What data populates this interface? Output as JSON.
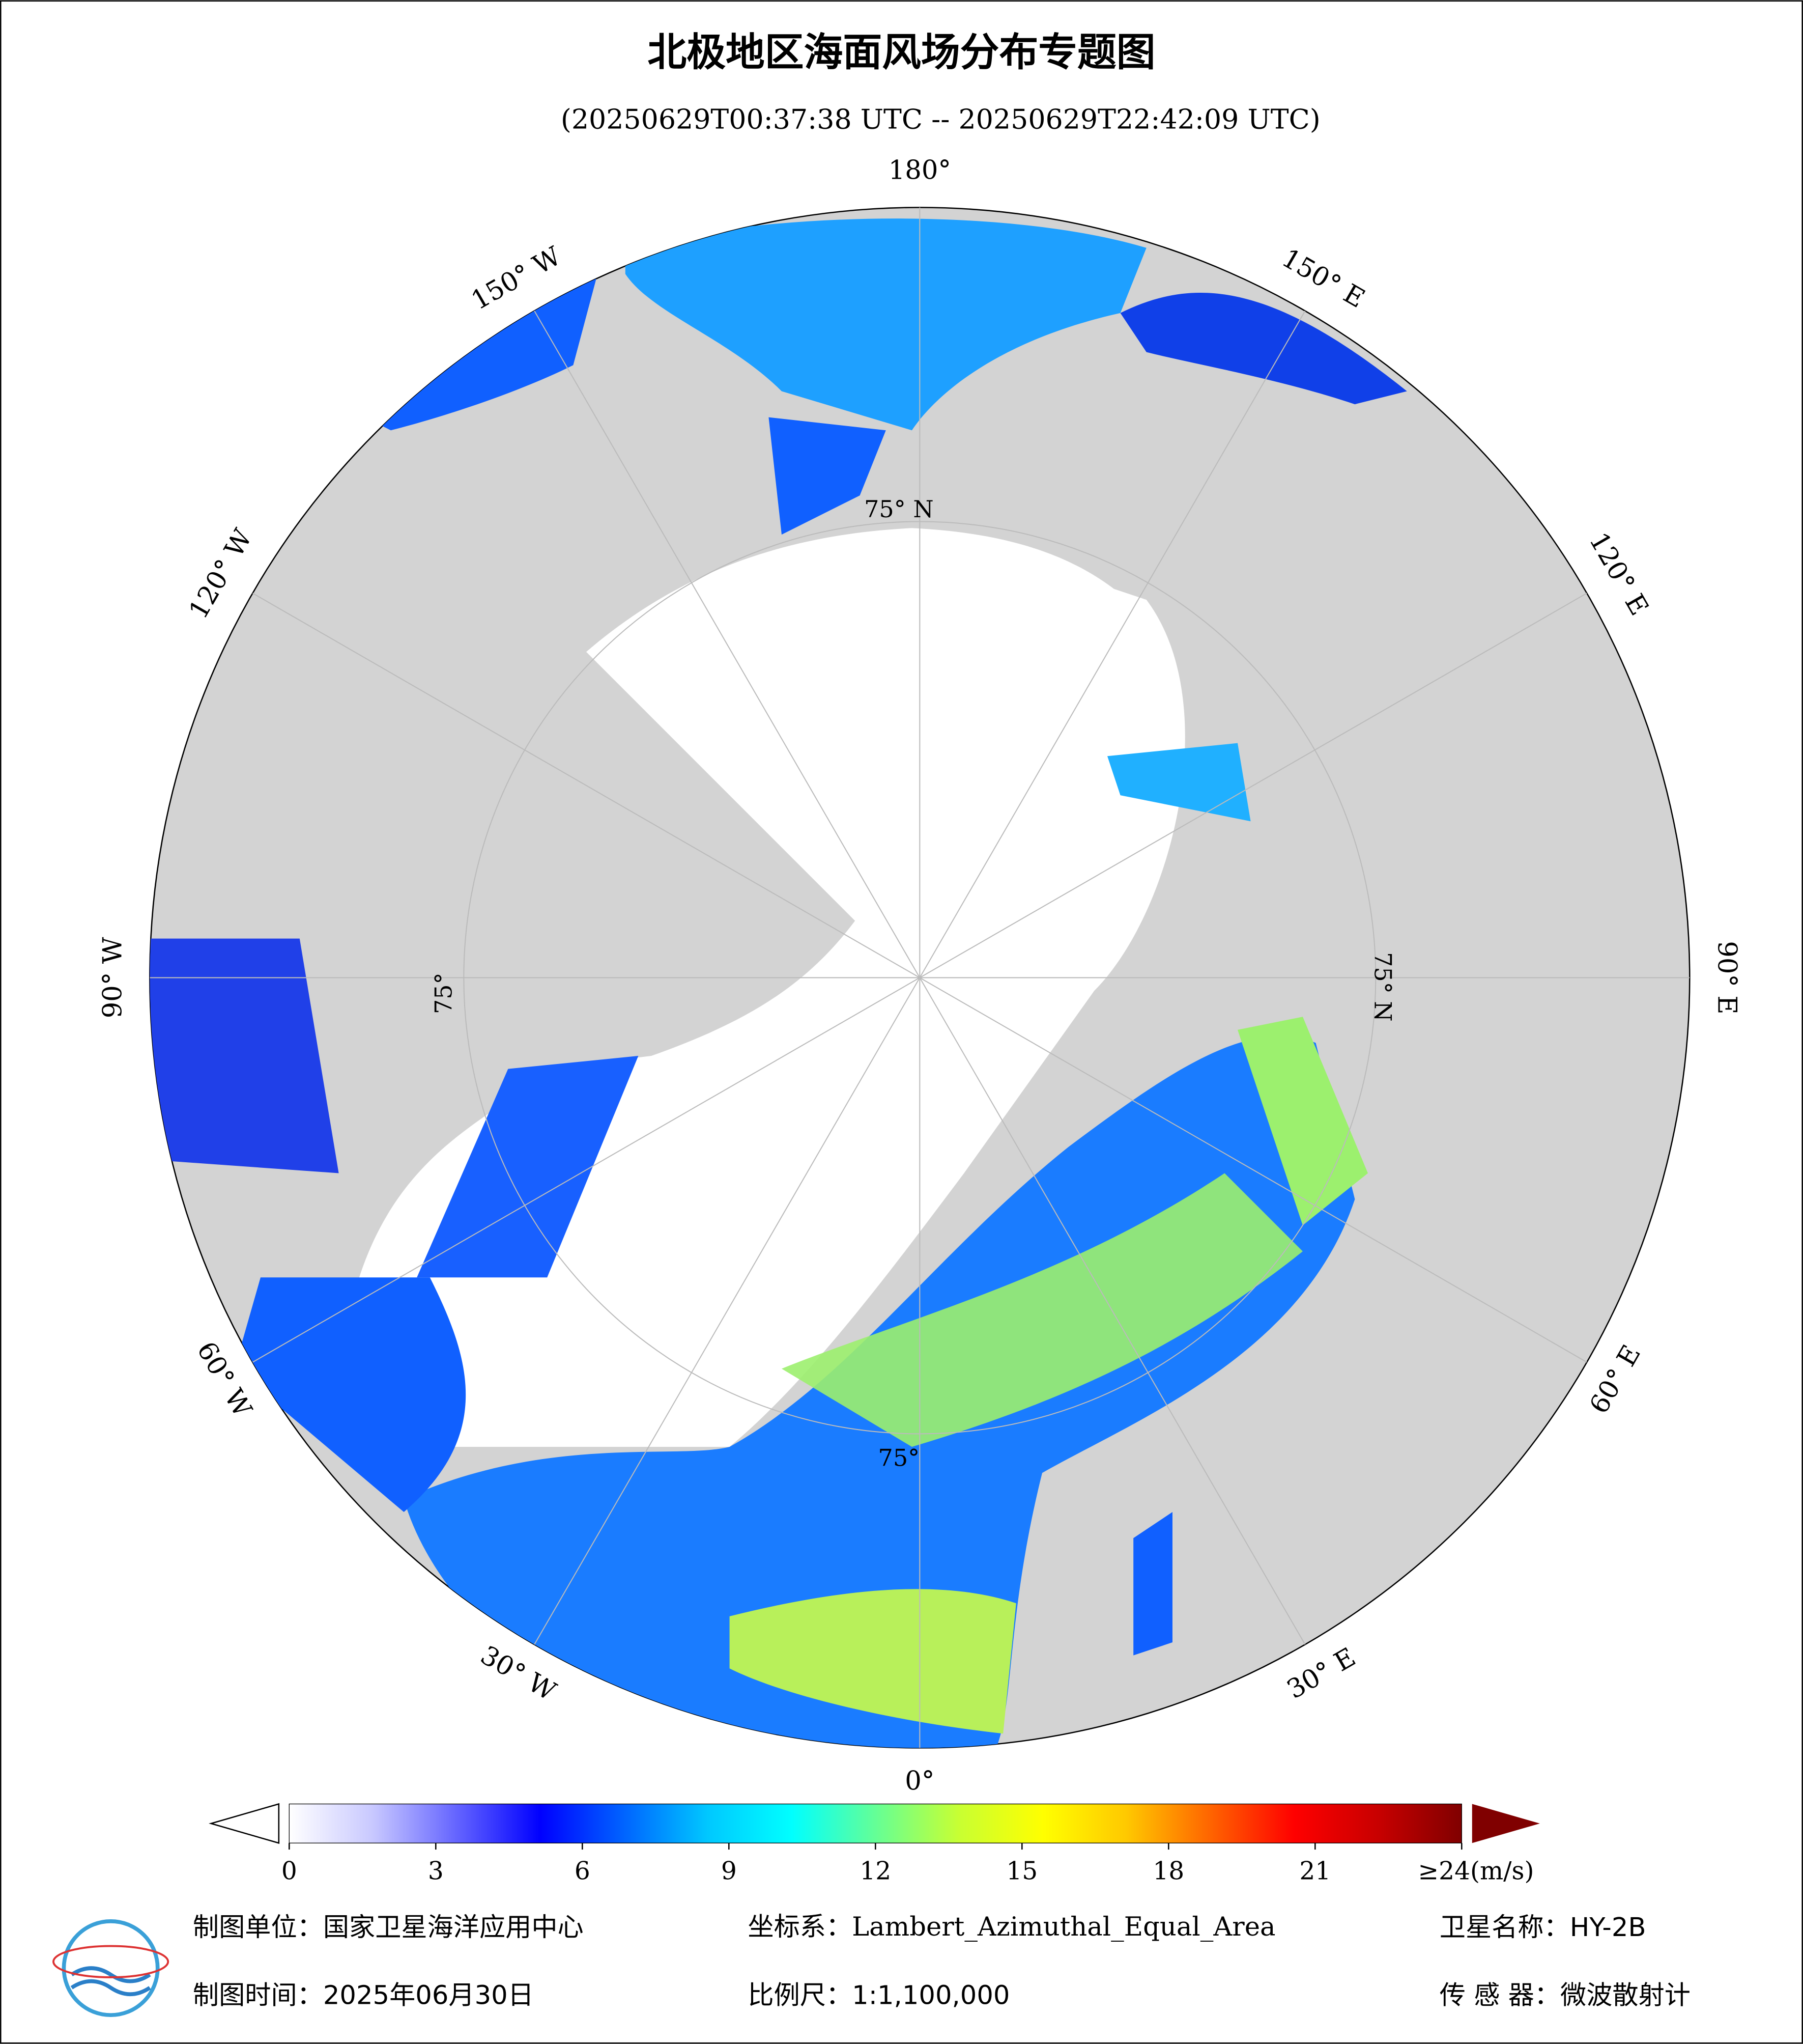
{
  "header": {
    "title": "北极地区海面风场分布专题图",
    "subtitle": "(20250629T00:37:38 UTC -- 20250629T22:42:09 UTC)"
  },
  "map": {
    "longitude_labels": [
      "180°",
      "150° E",
      "120° E",
      "90° E",
      "60° E",
      "30° E",
      "0°",
      "30° W",
      "60° W",
      "90° W",
      "120° W",
      "150° W"
    ],
    "latitude_labels": [
      "75° N",
      "75° N",
      "75°",
      "75°"
    ]
  },
  "colorbar": {
    "range": [
      0,
      24
    ],
    "ticks": [
      0,
      3,
      6,
      9,
      12,
      15,
      18,
      21,
      {
        "value": 24,
        "label": "≥24(m/s)"
      }
    ],
    "colors": [
      "#ffffff",
      "#c8c8ff",
      "#6464ff",
      "#0000ff",
      "#0064ff",
      "#00c8ff",
      "#00ffff",
      "#64ff96",
      "#c8ff32",
      "#ffff00",
      "#ffc800",
      "#ff6400",
      "#ff0000",
      "#c80000",
      "#800000"
    ]
  },
  "footer": {
    "unit": "制图单位：国家卫星海洋应用中心",
    "crs": "坐标系：Lambert_Azimuthal_Equal_Area",
    "satellite": "卫星名称：HY-2B",
    "date": "制图时间：2025年06月30日",
    "scale": "比例尺：1:1,100,000",
    "sensor": "传 感 器：微波散射计"
  }
}
